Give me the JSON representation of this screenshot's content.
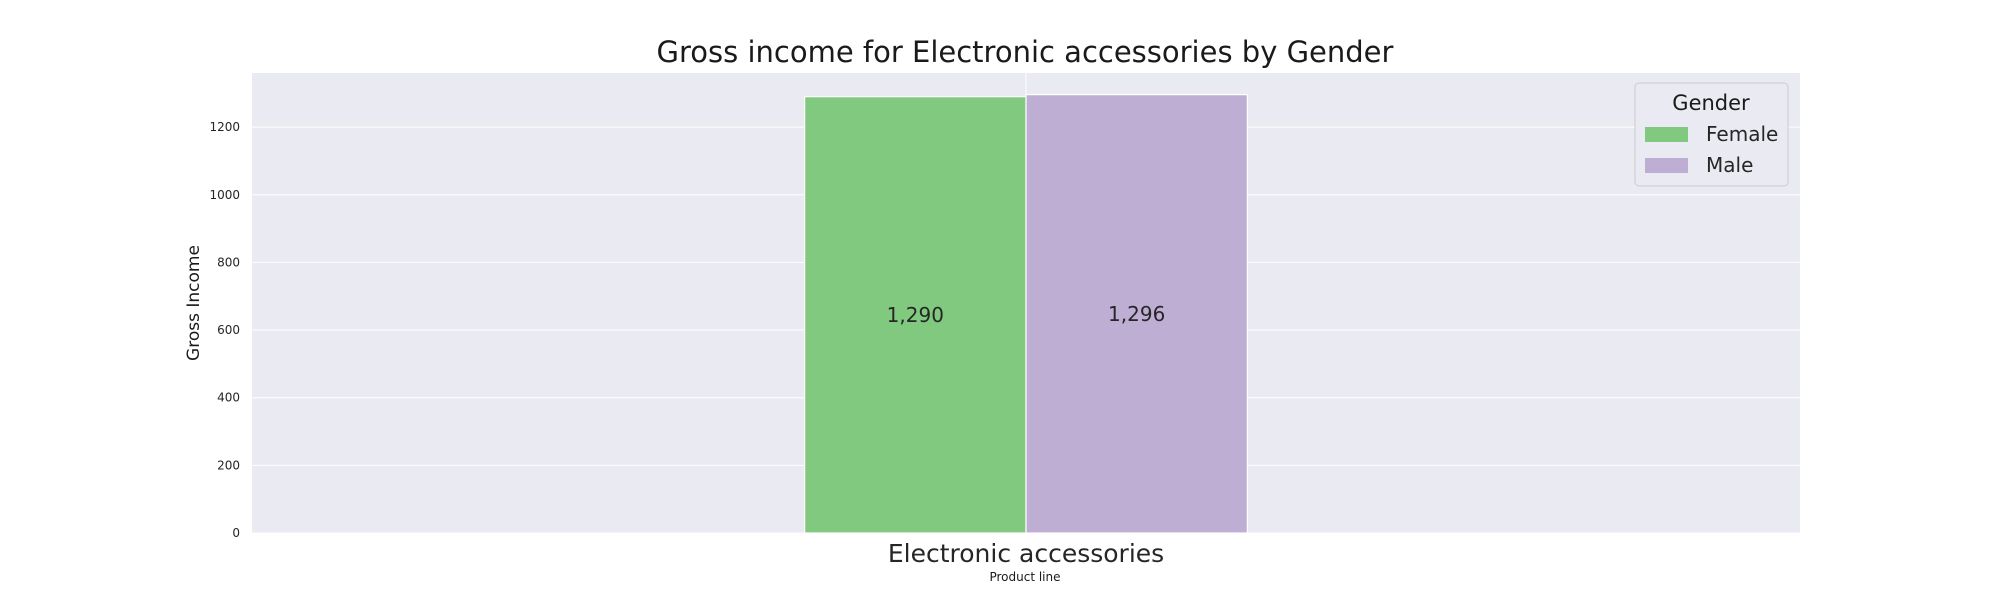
{
  "chart_data": {
    "type": "bar",
    "title": "Gross income for Electronic accessories by Gender",
    "xlabel": "Product line",
    "ylabel": "Gross Income",
    "categories": [
      "Electronic accessories"
    ],
    "series": [
      {
        "name": "Female",
        "values": [
          1290
        ],
        "label": "1,290",
        "color": "#81c97f"
      },
      {
        "name": "Male",
        "values": [
          1296
        ],
        "label": "1,296",
        "color": "#beaed4"
      }
    ],
    "ylim": [
      0,
      1360
    ],
    "yticks": [
      0,
      200,
      400,
      600,
      800,
      1000,
      1200
    ],
    "grid": true,
    "legend": {
      "title": "Gender",
      "placement": "top-right"
    },
    "background_color": "#eaeaf2"
  }
}
